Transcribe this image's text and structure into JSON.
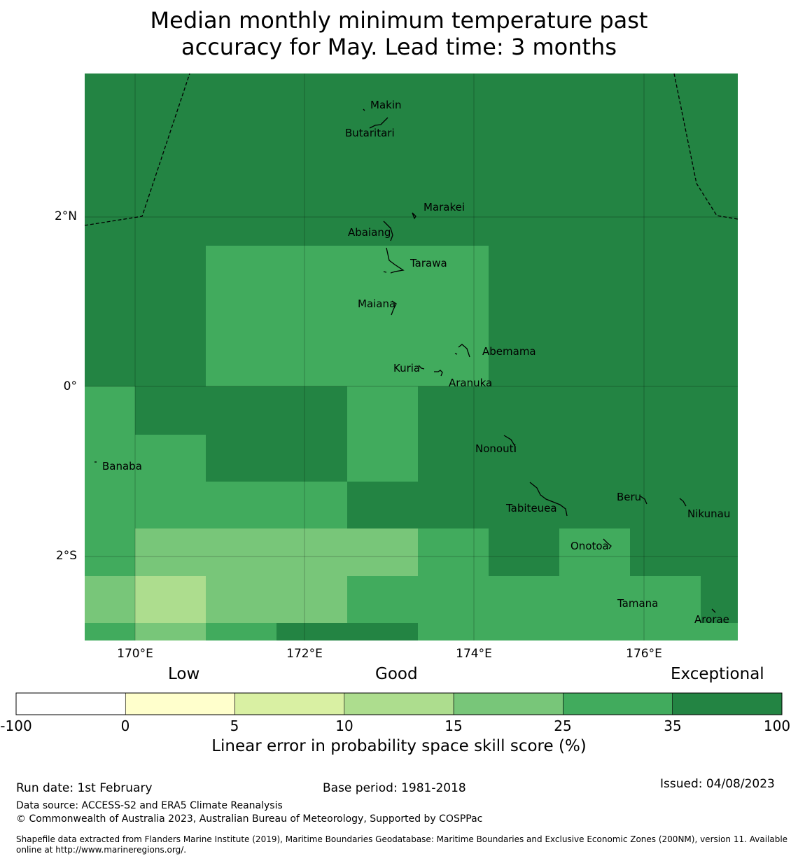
{
  "title_line1": "Median monthly minimum temperature past",
  "title_line2": "accuracy for May. Lead time: 3 months",
  "map": {
    "lon_ticks": [
      "170°E",
      "172°E",
      "174°E",
      "176°E"
    ],
    "lat_ticks": [
      "2°N",
      "0°",
      "2°S"
    ],
    "places": [
      {
        "name": "Makin",
        "lon": 173.0,
        "lat": 3.35
      },
      {
        "name": "Butaritari",
        "lon": 172.8,
        "lat": 3.1
      },
      {
        "name": "Marakei",
        "lon": 173.3,
        "lat": 2.0
      },
      {
        "name": "Abaiang",
        "lon": 173.0,
        "lat": 1.8
      },
      {
        "name": "Tarawa",
        "lon": 173.0,
        "lat": 1.4
      },
      {
        "name": "Maiana",
        "lon": 173.0,
        "lat": 0.9
      },
      {
        "name": "Abemama",
        "lon": 173.9,
        "lat": 0.4
      },
      {
        "name": "Kuria",
        "lon": 173.4,
        "lat": 0.2
      },
      {
        "name": "Aranuka",
        "lon": 173.6,
        "lat": 0.15
      },
      {
        "name": "Nonouti",
        "lon": 174.4,
        "lat": -0.6
      },
      {
        "name": "Banaba",
        "lon": 169.5,
        "lat": -0.85
      },
      {
        "name": "Tabiteuea",
        "lon": 174.8,
        "lat": -1.3
      },
      {
        "name": "Beru",
        "lon": 176.0,
        "lat": -1.35
      },
      {
        "name": "Nikunau",
        "lon": 176.45,
        "lat": -1.35
      },
      {
        "name": "Onotoa",
        "lon": 175.55,
        "lat": -1.8
      },
      {
        "name": "Tamana",
        "lon": 175.95,
        "lat": -2.5
      },
      {
        "name": "Arorae",
        "lon": 176.8,
        "lat": -2.65
      }
    ]
  },
  "legend": {
    "low_label": "Low",
    "good_label": "Good",
    "exceptional_label": "Exceptional",
    "ticks": [
      "-100",
      "0",
      "5",
      "10",
      "15",
      "25",
      "35",
      "100"
    ],
    "colors": [
      "#ffffff",
      "#ffffcc",
      "#d9f0a3",
      "#addd8e",
      "#78c679",
      "#41ab5d",
      "#238443"
    ],
    "title": "Linear error in probability space skill score (%)"
  },
  "footer": {
    "run_date": "Run date: 1st February",
    "base_period": "Base period: 1981-2018",
    "issued": "Issued: 04/08/2023",
    "data_source": "Data source: ACCESS-S2 and ERA5 Climate Reanalysis",
    "copyright": "© Commonwealth of Australia 2023, Australian Bureau of Meteorology, Supported by COSPPac",
    "shapefile_line1": "Shapefile data extracted from Flanders Marine Institute (2019), Maritime Boundaries Geodatabase: Maritime Boundaries and Exclusive Economic Zones (200NM), version 11. Available",
    "shapefile_line2": "online at http://www.marineregions.org/."
  }
}
